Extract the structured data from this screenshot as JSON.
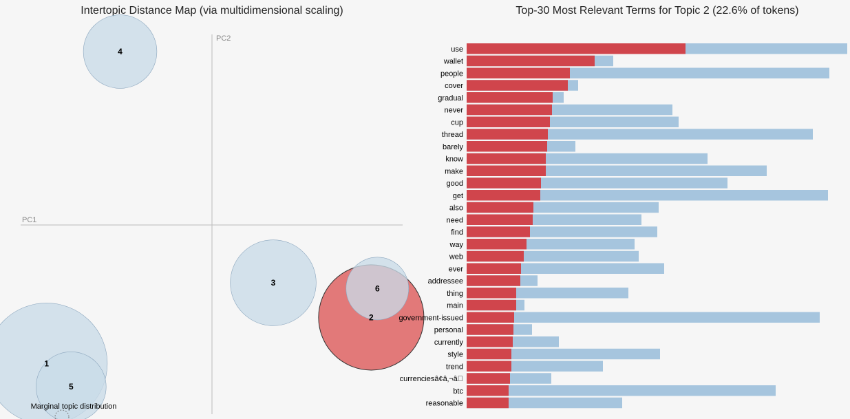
{
  "colors": {
    "overall": "#a6c5de",
    "topic": "#d0454c",
    "selected_circle": "#e07272",
    "circle": "#c9dbe8",
    "circle_stroke": "#8aa5bd"
  },
  "left_panel": {
    "title": "Intertopic Distance Map (via multidimensional scaling)",
    "axis_x_label": "PC1",
    "axis_y_label": "PC2",
    "legend_label": "Marginal topic distribution"
  },
  "chart_data": [
    {
      "type": "scatter",
      "title": "Intertopic Distance Map (via multidimensional scaling)",
      "xlabel": "PC1",
      "ylabel": "PC2",
      "selected_topic": 2,
      "topics": [
        {
          "id": "1",
          "x": -0.27,
          "y": -0.24,
          "size": 30
        },
        {
          "id": "2",
          "x": 0.26,
          "y": -0.16,
          "size": 22.6
        },
        {
          "id": "3",
          "x": 0.1,
          "y": -0.1,
          "size": 15
        },
        {
          "id": "4",
          "x": -0.15,
          "y": 0.3,
          "size": 11
        },
        {
          "id": "5",
          "x": -0.23,
          "y": -0.28,
          "size": 10
        },
        {
          "id": "6",
          "x": 0.27,
          "y": -0.11,
          "size": 8
        }
      ]
    },
    {
      "type": "bar",
      "orientation": "horizontal",
      "title": "Top-30 Most Relevant Terms for Topic 2 (22.6% of tokens)",
      "series": [
        {
          "name": "overall",
          "values": [
            553,
            213,
            527,
            162,
            141,
            299,
            308,
            503,
            158,
            350,
            436,
            379,
            525,
            279,
            254,
            277,
            244,
            250,
            287,
            103,
            235,
            84,
            513,
            95,
            134,
            281,
            198,
            123,
            449,
            226
          ]
        },
        {
          "name": "topic",
          "values": [
            318,
            186,
            150,
            147,
            125,
            124,
            121,
            118,
            117,
            115,
            115,
            108,
            107,
            97,
            96,
            92,
            87,
            83,
            79,
            78,
            72,
            72,
            69,
            68,
            67,
            65,
            65,
            63,
            61,
            61
          ]
        }
      ],
      "categories": [
        "use",
        "wallet",
        "people",
        "cover",
        "gradual",
        "never",
        "cup",
        "thread",
        "barely",
        "know",
        "make",
        "good",
        "get",
        "also",
        "need",
        "find",
        "way",
        "web",
        "ever",
        "addressee",
        "thing",
        "main",
        "government-issued",
        "personal",
        "currently",
        "style",
        "trend",
        "currenciesâ¢â‚¬â\u0000",
        "btc",
        "reasonable"
      ]
    }
  ]
}
